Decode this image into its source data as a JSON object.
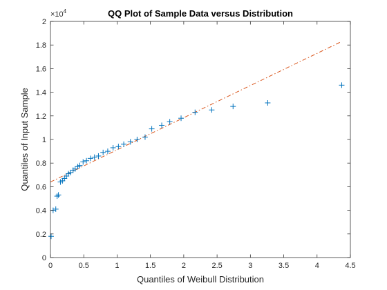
{
  "chart_data": {
    "type": "scatter",
    "title": "QQ Plot of Sample Data versus Distribution",
    "xlabel": "Quantiles of Weibull Distribution",
    "ylabel": "Quantiles of Input Sample",
    "xlim": [
      0,
      4.5
    ],
    "ylim": [
      0,
      20000
    ],
    "x_ticks": [
      0,
      0.5,
      1,
      1.5,
      2,
      2.5,
      3,
      3.5,
      4,
      4.5
    ],
    "x_tick_labels": [
      "0",
      "0.5",
      "1",
      "1.5",
      "2",
      "2.5",
      "3",
      "3.5",
      "4",
      "4.5"
    ],
    "y_ticks": [
      0,
      2000,
      4000,
      6000,
      8000,
      10000,
      12000,
      14000,
      16000,
      18000,
      20000
    ],
    "y_tick_labels": [
      "0",
      "0.2",
      "0.4",
      "0.6",
      "0.8",
      "1",
      "1.2",
      "1.4",
      "1.6",
      "1.8",
      "2"
    ],
    "y_exponent": {
      "base": "×10",
      "power": "4"
    },
    "grid": false,
    "colors": {
      "marker": "#0072BD",
      "reference_line": "#D95319"
    },
    "series": [
      {
        "marker": "+",
        "x": [
          0.01,
          0.04,
          0.08,
          0.1,
          0.12,
          0.15,
          0.18,
          0.21,
          0.24,
          0.27,
          0.3,
          0.34,
          0.37,
          0.41,
          0.44,
          0.49,
          0.54,
          0.6,
          0.66,
          0.72,
          0.79,
          0.86,
          0.94,
          1.02,
          1.1,
          1.2,
          1.3,
          1.42,
          1.52,
          1.67,
          1.79,
          1.96,
          2.17,
          2.42,
          2.74,
          3.26,
          4.37
        ],
        "y": [
          1800,
          4000,
          4100,
          5200,
          5300,
          6400,
          6500,
          6700,
          6900,
          7100,
          7200,
          7400,
          7500,
          7700,
          7800,
          8100,
          8200,
          8400,
          8500,
          8600,
          8900,
          9000,
          9300,
          9400,
          9600,
          9800,
          10000,
          10200,
          10900,
          11200,
          11500,
          11800,
          12300,
          12500,
          12800,
          13100,
          14600
        ]
      }
    ],
    "reference_line": {
      "x": [
        0,
        4.37
      ],
      "y": [
        6400,
        18300
      ],
      "style": "dash-dot"
    }
  }
}
